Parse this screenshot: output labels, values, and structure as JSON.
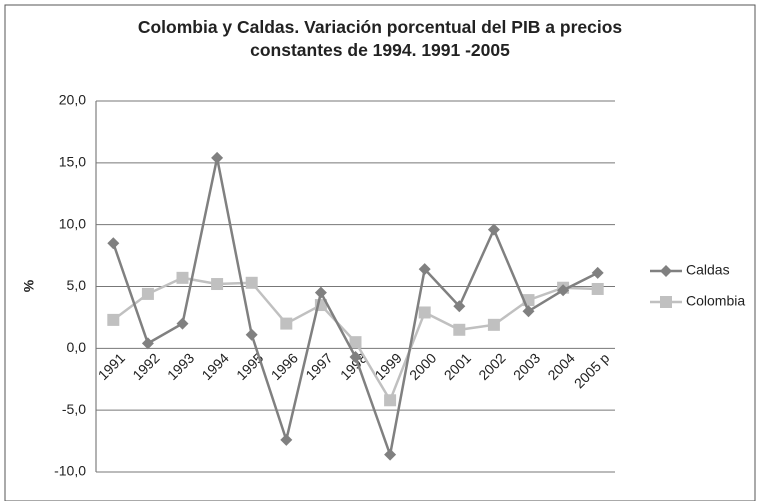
{
  "chart_data": {
    "type": "line",
    "title": "Colombia y Caldas. Variación porcentual del PIB a precios constantes de 1994. 1991 -2005",
    "y_label": "%",
    "categories": [
      "1991",
      "1992",
      "1993",
      "1994",
      "1995",
      "1996",
      "1997",
      "1998",
      "1999",
      "2000",
      "2001",
      "2002",
      "2003",
      "2004",
      "2005 p"
    ],
    "series": [
      {
        "name": "Caldas",
        "color": "#808080",
        "marker": "diamond",
        "values": [
          8.5,
          0.4,
          2.0,
          15.4,
          1.1,
          -7.4,
          4.5,
          -0.7,
          -8.6,
          6.4,
          3.4,
          9.6,
          3.0,
          4.7,
          6.1
        ]
      },
      {
        "name": "Colombia",
        "color": "#c0c0c0",
        "marker": "square",
        "values": [
          2.3,
          4.4,
          5.7,
          5.2,
          5.3,
          2.0,
          3.5,
          0.5,
          -4.2,
          2.9,
          1.5,
          1.9,
          3.9,
          4.9,
          4.8
        ]
      }
    ],
    "ylim": [
      -10,
      20
    ],
    "yticks": [
      {
        "value": -10,
        "label": "-10,0"
      },
      {
        "value": -5,
        "label": "-5,0"
      },
      {
        "value": 0,
        "label": "0,0"
      },
      {
        "value": 5,
        "label": "5,0"
      },
      {
        "value": 10,
        "label": "10,0"
      },
      {
        "value": 15,
        "label": "15,0"
      },
      {
        "value": 20,
        "label": "20,0"
      }
    ],
    "grid": true,
    "legend": "right"
  }
}
